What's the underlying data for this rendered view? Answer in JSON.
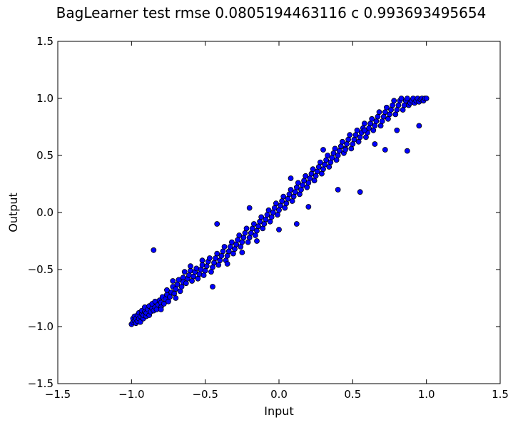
{
  "chart_data": {
    "type": "scatter",
    "title": "BagLearner test rmse 0.0805194463116 c 0.993693495654",
    "xlabel": "Input",
    "ylabel": "Output",
    "xlim": [
      -1.5,
      1.5
    ],
    "ylim": [
      -1.5,
      1.5
    ],
    "x_ticks": [
      -1.5,
      -1.0,
      -0.5,
      0.0,
      0.5,
      1.0,
      1.5
    ],
    "y_ticks": [
      -1.5,
      -1.0,
      -0.5,
      0.0,
      0.5,
      1.0,
      1.5
    ],
    "x_tick_labels": [
      "−1.5",
      "−1.0",
      "−0.5",
      "0.0",
      "0.5",
      "1.0",
      "1.5"
    ],
    "y_tick_labels": [
      "−1.5",
      "−1.0",
      "−0.5",
      "0.0",
      "0.5",
      "1.0",
      "1.5"
    ],
    "grid": false,
    "marker_color": "#0000ff",
    "marker_edge_color": "#000000",
    "series": [
      {
        "points": [
          [
            -1.0,
            -0.98
          ],
          [
            -0.99,
            -0.96
          ],
          [
            -0.99,
            -0.93
          ],
          [
            -0.98,
            -0.95
          ],
          [
            -0.98,
            -0.91
          ],
          [
            -0.97,
            -0.97
          ],
          [
            -0.97,
            -0.93
          ],
          [
            -0.96,
            -0.95
          ],
          [
            -0.96,
            -0.9
          ],
          [
            -0.95,
            -0.93
          ],
          [
            -0.95,
            -0.88
          ],
          [
            -0.94,
            -0.96
          ],
          [
            -0.94,
            -0.91
          ],
          [
            -0.93,
            -0.89
          ],
          [
            -0.93,
            -0.86
          ],
          [
            -0.92,
            -0.93
          ],
          [
            -0.92,
            -0.9
          ],
          [
            -0.91,
            -0.87
          ],
          [
            -0.91,
            -0.83
          ],
          [
            -0.9,
            -0.91
          ],
          [
            -0.9,
            -0.88
          ],
          [
            -0.89,
            -0.85
          ],
          [
            -0.88,
            -0.82
          ],
          [
            -0.88,
            -0.9
          ],
          [
            -0.87,
            -0.87
          ],
          [
            -0.86,
            -0.84
          ],
          [
            -0.86,
            -0.8
          ],
          [
            -0.85,
            -0.86
          ],
          [
            -0.84,
            -0.83
          ],
          [
            -0.84,
            -0.78
          ],
          [
            -0.83,
            -0.85
          ],
          [
            -0.82,
            -0.81
          ],
          [
            -0.81,
            -0.77
          ],
          [
            -0.8,
            -0.83
          ],
          [
            -0.8,
            -0.79
          ],
          [
            -0.79,
            -0.74
          ],
          [
            -0.78,
            -0.8
          ],
          [
            -0.77,
            -0.76
          ],
          [
            -0.76,
            -0.72
          ],
          [
            -0.76,
            -0.68
          ],
          [
            -0.75,
            -0.78
          ],
          [
            -0.74,
            -0.74
          ],
          [
            -0.73,
            -0.7
          ],
          [
            -0.72,
            -0.65
          ],
          [
            -0.72,
            -0.6
          ],
          [
            -0.71,
            -0.71
          ],
          [
            -0.7,
            -0.67
          ],
          [
            -0.69,
            -0.63
          ],
          [
            -0.68,
            -0.59
          ],
          [
            -0.67,
            -0.69
          ],
          [
            -0.66,
            -0.65
          ],
          [
            -0.65,
            -0.61
          ],
          [
            -0.65,
            -0.57
          ],
          [
            -0.64,
            -0.52
          ],
          [
            -0.63,
            -0.62
          ],
          [
            -0.62,
            -0.58
          ],
          [
            -0.61,
            -0.55
          ],
          [
            -0.6,
            -0.51
          ],
          [
            -0.59,
            -0.6
          ],
          [
            -0.58,
            -0.56
          ],
          [
            -0.57,
            -0.52
          ],
          [
            -0.56,
            -0.49
          ],
          [
            -0.55,
            -0.58
          ],
          [
            -0.54,
            -0.54
          ],
          [
            -0.53,
            -0.5
          ],
          [
            -0.52,
            -0.46
          ],
          [
            -0.52,
            -0.42
          ],
          [
            -0.51,
            -0.55
          ],
          [
            -0.5,
            -0.51
          ],
          [
            -0.49,
            -0.47
          ],
          [
            -0.48,
            -0.43
          ],
          [
            -0.47,
            -0.4
          ],
          [
            -0.46,
            -0.52
          ],
          [
            -0.45,
            -0.48
          ],
          [
            -0.44,
            -0.44
          ],
          [
            -0.43,
            -0.4
          ],
          [
            -0.42,
            -0.36
          ],
          [
            -0.41,
            -0.46
          ],
          [
            -0.4,
            -0.42
          ],
          [
            -0.39,
            -0.38
          ],
          [
            -0.38,
            -0.34
          ],
          [
            -0.37,
            -0.3
          ],
          [
            -0.36,
            -0.42
          ],
          [
            -0.35,
            -0.38
          ],
          [
            -0.34,
            -0.34
          ],
          [
            -0.33,
            -0.3
          ],
          [
            -0.32,
            -0.26
          ],
          [
            -0.31,
            -0.36
          ],
          [
            -0.3,
            -0.32
          ],
          [
            -0.29,
            -0.28
          ],
          [
            -0.28,
            -0.24
          ],
          [
            -0.27,
            -0.2
          ],
          [
            -0.26,
            -0.3
          ],
          [
            -0.25,
            -0.26
          ],
          [
            -0.24,
            -0.22
          ],
          [
            -0.23,
            -0.18
          ],
          [
            -0.22,
            -0.14
          ],
          [
            -0.21,
            -0.26
          ],
          [
            -0.2,
            -0.22
          ],
          [
            -0.19,
            -0.18
          ],
          [
            -0.18,
            -0.14
          ],
          [
            -0.17,
            -0.1
          ],
          [
            -0.16,
            -0.2
          ],
          [
            -0.15,
            -0.16
          ],
          [
            -0.14,
            -0.12
          ],
          [
            -0.13,
            -0.08
          ],
          [
            -0.12,
            -0.04
          ],
          [
            -0.11,
            -0.14
          ],
          [
            -0.1,
            -0.1
          ],
          [
            -0.09,
            -0.06
          ],
          [
            -0.08,
            -0.02
          ],
          [
            -0.07,
            0.02
          ],
          [
            -0.06,
            -0.08
          ],
          [
            -0.05,
            -0.04
          ],
          [
            -0.04,
            0.0
          ],
          [
            -0.03,
            0.04
          ],
          [
            -0.02,
            0.08
          ],
          [
            -0.01,
            -0.02
          ],
          [
            0.0,
            0.02
          ],
          [
            0.01,
            0.06
          ],
          [
            0.02,
            0.1
          ],
          [
            0.03,
            0.14
          ],
          [
            0.04,
            0.04
          ],
          [
            0.05,
            0.08
          ],
          [
            0.06,
            0.12
          ],
          [
            0.07,
            0.16
          ],
          [
            0.08,
            0.2
          ],
          [
            0.09,
            0.1
          ],
          [
            0.1,
            0.14
          ],
          [
            0.11,
            0.18
          ],
          [
            0.12,
            0.22
          ],
          [
            0.13,
            0.26
          ],
          [
            0.14,
            0.16
          ],
          [
            0.15,
            0.2
          ],
          [
            0.16,
            0.24
          ],
          [
            0.17,
            0.28
          ],
          [
            0.18,
            0.32
          ],
          [
            0.19,
            0.22
          ],
          [
            0.2,
            0.26
          ],
          [
            0.21,
            0.3
          ],
          [
            0.22,
            0.34
          ],
          [
            0.23,
            0.38
          ],
          [
            0.24,
            0.28
          ],
          [
            0.25,
            0.32
          ],
          [
            0.26,
            0.36
          ],
          [
            0.27,
            0.4
          ],
          [
            0.28,
            0.44
          ],
          [
            0.29,
            0.34
          ],
          [
            0.3,
            0.38
          ],
          [
            0.31,
            0.42
          ],
          [
            0.32,
            0.46
          ],
          [
            0.33,
            0.5
          ],
          [
            0.34,
            0.4
          ],
          [
            0.35,
            0.44
          ],
          [
            0.36,
            0.48
          ],
          [
            0.37,
            0.52
          ],
          [
            0.38,
            0.56
          ],
          [
            0.39,
            0.46
          ],
          [
            0.4,
            0.5
          ],
          [
            0.41,
            0.54
          ],
          [
            0.42,
            0.58
          ],
          [
            0.43,
            0.62
          ],
          [
            0.44,
            0.52
          ],
          [
            0.45,
            0.56
          ],
          [
            0.46,
            0.6
          ],
          [
            0.47,
            0.64
          ],
          [
            0.48,
            0.68
          ],
          [
            0.49,
            0.56
          ],
          [
            0.5,
            0.6
          ],
          [
            0.51,
            0.64
          ],
          [
            0.52,
            0.68
          ],
          [
            0.53,
            0.72
          ],
          [
            0.54,
            0.62
          ],
          [
            0.55,
            0.66
          ],
          [
            0.56,
            0.7
          ],
          [
            0.57,
            0.74
          ],
          [
            0.58,
            0.78
          ],
          [
            0.59,
            0.66
          ],
          [
            0.6,
            0.7
          ],
          [
            0.61,
            0.74
          ],
          [
            0.62,
            0.78
          ],
          [
            0.63,
            0.82
          ],
          [
            0.64,
            0.72
          ],
          [
            0.65,
            0.76
          ],
          [
            0.66,
            0.8
          ],
          [
            0.67,
            0.84
          ],
          [
            0.68,
            0.88
          ],
          [
            0.69,
            0.76
          ],
          [
            0.7,
            0.8
          ],
          [
            0.71,
            0.84
          ],
          [
            0.72,
            0.88
          ],
          [
            0.73,
            0.92
          ],
          [
            0.74,
            0.82
          ],
          [
            0.75,
            0.86
          ],
          [
            0.76,
            0.9
          ],
          [
            0.77,
            0.94
          ],
          [
            0.78,
            0.98
          ],
          [
            0.79,
            0.86
          ],
          [
            0.8,
            0.9
          ],
          [
            0.81,
            0.94
          ],
          [
            0.82,
            0.98
          ],
          [
            0.83,
            1.0
          ],
          [
            0.84,
            0.9
          ],
          [
            0.85,
            0.94
          ],
          [
            0.86,
            0.98
          ],
          [
            0.87,
            1.0
          ],
          [
            0.88,
            0.94
          ],
          [
            0.89,
            0.96
          ],
          [
            0.9,
            0.98
          ],
          [
            0.91,
            1.0
          ],
          [
            0.92,
            0.96
          ],
          [
            0.93,
            0.98
          ],
          [
            0.94,
            1.0
          ],
          [
            0.95,
            0.97
          ],
          [
            0.96,
            0.99
          ],
          [
            0.97,
            1.0
          ],
          [
            0.98,
            0.98
          ],
          [
            0.99,
            1.0
          ],
          [
            1.0,
            1.0
          ],
          [
            -0.85,
            -0.33
          ],
          [
            -0.42,
            -0.1
          ],
          [
            -0.2,
            0.04
          ],
          [
            0.08,
            0.3
          ],
          [
            0.55,
            0.18
          ],
          [
            0.58,
            0.72
          ],
          [
            0.87,
            0.54
          ],
          [
            0.95,
            0.76
          ],
          [
            0.3,
            0.55
          ],
          [
            -0.6,
            -0.47
          ],
          [
            -0.25,
            -0.35
          ],
          [
            0.12,
            -0.1
          ],
          [
            -0.7,
            -0.75
          ],
          [
            0.4,
            0.2
          ],
          [
            0.72,
            0.55
          ],
          [
            -0.45,
            -0.65
          ],
          [
            0.65,
            0.6
          ],
          [
            0.2,
            0.05
          ],
          [
            -0.15,
            -0.25
          ],
          [
            0.45,
            0.55
          ],
          [
            -0.35,
            -0.45
          ],
          [
            0.8,
            0.72
          ],
          [
            -0.8,
            -0.85
          ],
          [
            0.0,
            -0.15
          ]
        ]
      }
    ]
  }
}
